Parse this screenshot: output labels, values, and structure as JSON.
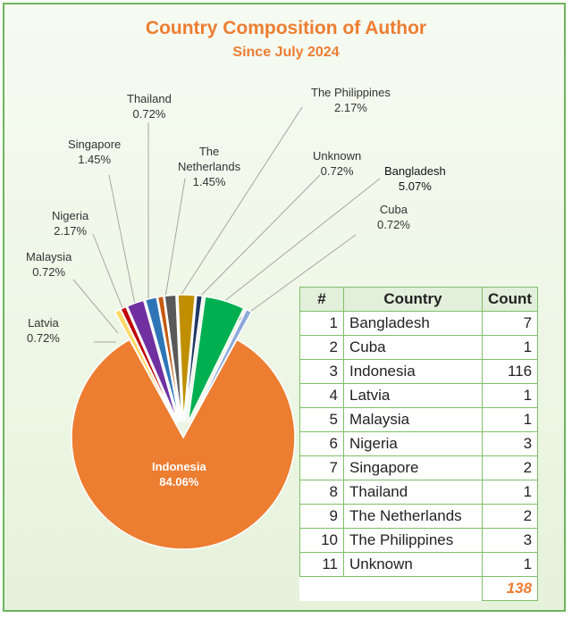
{
  "chart_data": {
    "type": "pie",
    "title": "Country Composition of Author",
    "subtitle": "Since July 2024",
    "slices": [
      {
        "label": "Indonesia",
        "value": 116,
        "pct": "84.06%",
        "color": "#ed7d31"
      },
      {
        "label": "Bangladesh",
        "value": 7,
        "pct": "5.07%",
        "color": "#00b050"
      },
      {
        "label": "Cuba",
        "value": 1,
        "pct": "0.72%",
        "color": "#8eaadb"
      },
      {
        "label": "Latvia",
        "value": 1,
        "pct": "0.72%",
        "color": "#ffd966"
      },
      {
        "label": "Malaysia",
        "value": 1,
        "pct": "0.72%",
        "color": "#c00000"
      },
      {
        "label": "Nigeria",
        "value": 3,
        "pct": "2.17%",
        "color": "#7030a0"
      },
      {
        "label": "Singapore",
        "value": 2,
        "pct": "1.45%",
        "color": "#2e75b6"
      },
      {
        "label": "Thailand",
        "value": 1,
        "pct": "0.72%",
        "color": "#c55a11"
      },
      {
        "label": "The Netherlands",
        "value": 2,
        "pct": "1.45%",
        "color": "#595959"
      },
      {
        "label": "The Philippines",
        "value": 3,
        "pct": "2.17%",
        "color": "#bf8f00"
      },
      {
        "label": "Unknown",
        "value": 1,
        "pct": "0.72%",
        "color": "#203864"
      }
    ]
  },
  "table": {
    "headers": [
      "#",
      "Country",
      "Count"
    ],
    "rows": [
      {
        "n": "1",
        "country": "Bangladesh",
        "count": "7"
      },
      {
        "n": "2",
        "country": "Cuba",
        "count": "1"
      },
      {
        "n": "3",
        "country": "Indonesia",
        "count": "116"
      },
      {
        "n": "4",
        "country": "Latvia",
        "count": "1"
      },
      {
        "n": "5",
        "country": "Malaysia",
        "count": "1"
      },
      {
        "n": "6",
        "country": "Nigeria",
        "count": "3"
      },
      {
        "n": "7",
        "country": "Singapore",
        "count": "2"
      },
      {
        "n": "8",
        "country": "Thailand",
        "count": "1"
      },
      {
        "n": "9",
        "country": "The Netherlands",
        "count": "2"
      },
      {
        "n": "10",
        "country": "The Philippines",
        "count": "3"
      },
      {
        "n": "11",
        "country": "Unknown",
        "count": "1"
      }
    ],
    "total": "138"
  },
  "labels": {
    "indonesia": {
      "name": "Indonesia",
      "pct": "84.06%"
    },
    "bangladesh": {
      "name": "Bangladesh",
      "pct": "5.07%"
    },
    "cuba": {
      "name": "Cuba",
      "pct": "0.72%"
    },
    "latvia": {
      "name": "Latvia",
      "pct": "0.72%"
    },
    "malaysia": {
      "name": "Malaysia",
      "pct": "0.72%"
    },
    "nigeria": {
      "name": "Nigeria",
      "pct": "2.17%"
    },
    "singapore": {
      "name": "Singapore",
      "pct": "1.45%"
    },
    "thailand": {
      "name": "Thailand",
      "pct": "0.72%"
    },
    "netherlands_1": "The",
    "netherlands_2": "Netherlands",
    "netherlands_pct": "1.45%",
    "philippines": {
      "name": "The Philippines",
      "pct": "2.17%"
    },
    "unknown": {
      "name": "Unknown",
      "pct": "0.72%"
    }
  }
}
